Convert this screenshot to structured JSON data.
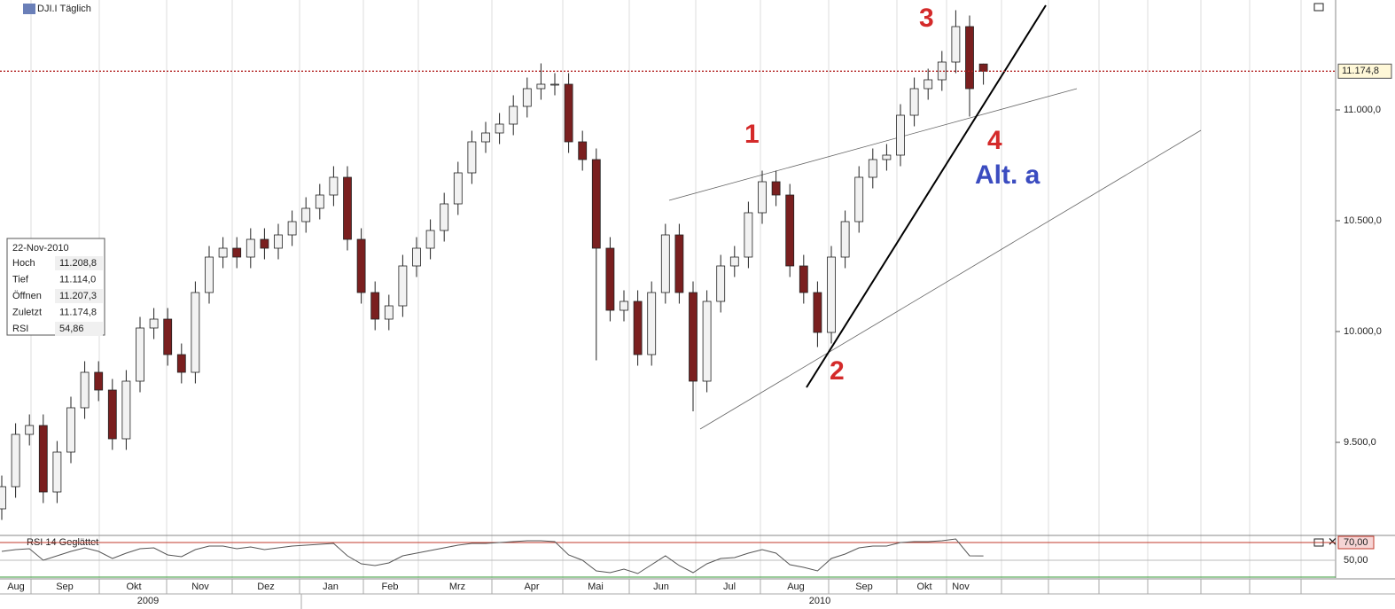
{
  "chart_data": [
    {
      "type": "candlestick",
      "title": "DJI.I Täglich",
      "x_labels": [
        "Aug",
        "Sep",
        "Okt",
        "Nov",
        "Dez",
        "Jan",
        "Feb",
        "Mrz",
        "Apr",
        "Mai",
        "Jun",
        "Jul",
        "Aug",
        "Sep",
        "Okt",
        "Nov"
      ],
      "years": [
        "2009",
        "2010"
      ],
      "open": [
        9200,
        9300,
        9536,
        9576,
        9276,
        9456,
        9656,
        9816,
        9736,
        9516,
        9776,
        10016,
        10056,
        9896,
        9816,
        10176,
        10336,
        10376,
        10336,
        10416,
        10376,
        10436,
        10496,
        10556,
        10616,
        10696,
        10416,
        10176,
        10056,
        10116,
        10296,
        10376,
        10456,
        10576,
        10716,
        10856,
        10896,
        10936,
        11016,
        11096,
        11116,
        11116,
        10856,
        10776,
        10376,
        10096,
        10136,
        9896,
        10176,
        10436,
        10176,
        9776,
        10136,
        10296,
        10336,
        10536,
        10676,
        10616,
        10296,
        10176,
        9996,
        10336,
        10496,
        10696,
        10776,
        10796,
        10976,
        11096,
        11136,
        11216,
        11376,
        11207.3
      ],
      "high": [
        9350,
        9586,
        9626,
        9626,
        9506,
        9706,
        9866,
        9866,
        9786,
        9826,
        10066,
        10106,
        10106,
        9946,
        10226,
        10386,
        10426,
        10426,
        10466,
        10466,
        10486,
        10546,
        10606,
        10666,
        10746,
        10746,
        10466,
        10226,
        10166,
        10346,
        10426,
        10506,
        10626,
        10766,
        10906,
        10946,
        10986,
        11066,
        11146,
        11210,
        11166,
        11166,
        10906,
        10826,
        10426,
        10186,
        10186,
        10226,
        10486,
        10486,
        10226,
        10186,
        10346,
        10386,
        10586,
        10726,
        10726,
        10666,
        10346,
        10226,
        10386,
        10546,
        10746,
        10826,
        10846,
        11026,
        11146,
        11186,
        11266,
        11450,
        11426,
        11208.8
      ],
      "low": [
        9150,
        9250,
        9486,
        9226,
        9226,
        9406,
        9606,
        9686,
        9466,
        9466,
        9726,
        9966,
        9846,
        9766,
        9766,
        10126,
        10286,
        10286,
        10286,
        10326,
        10326,
        10386,
        10446,
        10506,
        10566,
        10366,
        10126,
        10006,
        10006,
        10066,
        10246,
        10326,
        10406,
        10526,
        10666,
        10806,
        10846,
        10886,
        10966,
        11046,
        11066,
        10806,
        10726,
        9870,
        10046,
        10046,
        9846,
        9846,
        10126,
        10126,
        9640,
        9726,
        10086,
        10246,
        10286,
        10486,
        10566,
        10246,
        10126,
        9930,
        9946,
        10286,
        10446,
        10646,
        10726,
        10746,
        10926,
        11046,
        11086,
        11166,
        10970,
        11114.0
      ],
      "close": [
        9300,
        9536,
        9576,
        9276,
        9456,
        9656,
        9816,
        9736,
        9516,
        9776,
        10016,
        10056,
        9896,
        9816,
        10176,
        10336,
        10376,
        10336,
        10416,
        10376,
        10436,
        10496,
        10556,
        10616,
        10696,
        10416,
        10176,
        10056,
        10116,
        10296,
        10376,
        10456,
        10576,
        10716,
        10856,
        10896,
        10936,
        11016,
        11096,
        11116,
        11116,
        10856,
        10776,
        10376,
        10096,
        10136,
        9896,
        10176,
        10436,
        10176,
        9776,
        10136,
        10296,
        10336,
        10536,
        10676,
        10616,
        10296,
        10176,
        9996,
        10336,
        10496,
        10696,
        10776,
        10796,
        10976,
        11096,
        11136,
        11216,
        11376,
        11096,
        11174.8
      ],
      "up_color": "#f2f2f2",
      "down_color": "#7a1f1f",
      "ylim": [
        9084,
        11496
      ],
      "yticks": [
        {
          "value": 9500,
          "label": "9.500,0"
        },
        {
          "value": 10000,
          "label": "10.000,0"
        },
        {
          "value": 10500,
          "label": "10.500,0"
        },
        {
          "value": 11000,
          "label": "11.000,0"
        }
      ],
      "last_price": {
        "value": 11174.8,
        "label": "11.174,8"
      },
      "info_box": {
        "date": "22-Nov-2010",
        "rows": [
          [
            "Hoch",
            "11.208,8"
          ],
          [
            "Tief",
            "11.114,0"
          ],
          [
            "Öffnen",
            "11.207,3"
          ],
          [
            "Zuletzt",
            "11.174,8"
          ],
          [
            "RSI",
            "54,86"
          ]
        ]
      },
      "annotations": [
        {
          "text": "1",
          "color": "#d42a2a"
        },
        {
          "text": "2",
          "color": "#d42a2a"
        },
        {
          "text": "3",
          "color": "#d42a2a"
        },
        {
          "text": "4",
          "color": "#d42a2a"
        },
        {
          "text": "Alt. a",
          "color": "#3b4cc0"
        }
      ]
    },
    {
      "type": "line",
      "title": "RSI 14 Geglättet",
      "color": "#555555",
      "values": [
        60,
        62,
        63,
        50,
        55,
        60,
        64,
        60,
        52,
        58,
        63,
        64,
        56,
        54,
        62,
        66,
        66,
        63,
        65,
        62,
        64,
        66,
        67,
        68,
        69,
        55,
        46,
        44,
        47,
        55,
        58,
        61,
        64,
        67,
        69,
        69,
        70,
        71,
        72,
        72,
        71,
        56,
        50,
        38,
        36,
        40,
        35,
        45,
        55,
        44,
        36,
        46,
        52,
        53,
        58,
        62,
        58,
        45,
        42,
        38,
        52,
        57,
        64,
        66,
        66,
        70,
        71,
        71,
        72,
        74,
        55,
        54.86
      ],
      "ylim": [
        32,
        76
      ],
      "yticks": [
        {
          "value": 70,
          "label": "70,00"
        },
        {
          "value": 50,
          "label": "50,00"
        }
      ]
    }
  ]
}
